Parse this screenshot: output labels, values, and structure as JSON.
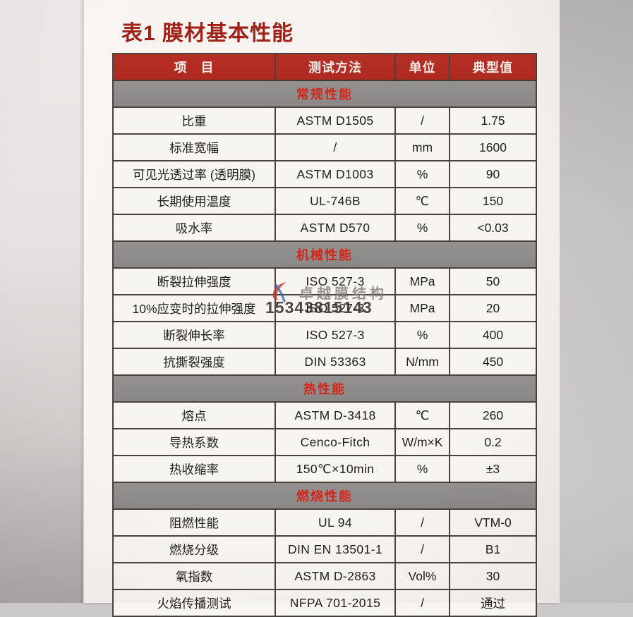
{
  "page": {
    "title": "表1 膜材基本性能"
  },
  "table": {
    "columns": [
      "项　目",
      "测试方法",
      "单位",
      "典型值"
    ],
    "sections": [
      {
        "name": "常规性能",
        "rows": [
          [
            "比重",
            "ASTM D1505",
            "/",
            "1.75"
          ],
          [
            "标准宽幅",
            "/",
            "mm",
            "1600"
          ],
          [
            "可见光透过率 (透明膜)",
            "ASTM D1003",
            "%",
            "90"
          ],
          [
            "长期使用温度",
            "UL-746B",
            "℃",
            "150"
          ],
          [
            "吸水率",
            "ASTM D570",
            "%",
            "<0.03"
          ]
        ]
      },
      {
        "name": "机械性能",
        "rows": [
          [
            "断裂拉伸强度",
            "ISO 527-3",
            "MPa",
            "50"
          ],
          [
            "10%应变时的拉伸强度",
            "ISO 527-3",
            "MPa",
            "20"
          ],
          [
            "断裂伸长率",
            "ISO 527-3",
            "%",
            "400"
          ],
          [
            "抗撕裂强度",
            "DIN 53363",
            "N/mm",
            "450"
          ]
        ]
      },
      {
        "name": "热性能",
        "rows": [
          [
            "熔点",
            "ASTM D-3418",
            "℃",
            "260"
          ],
          [
            "导热系数",
            "Cenco-Fitch",
            "W/m×K",
            "0.2"
          ],
          [
            "热收缩率",
            "150℃×10min",
            "%",
            "±3"
          ]
        ]
      },
      {
        "name": "燃烧性能",
        "rows": [
          [
            "阻燃性能",
            "UL 94",
            "/",
            "VTM-0"
          ],
          [
            "燃烧分级",
            "DIN EN 13501-1",
            "/",
            "B1"
          ],
          [
            "氧指数",
            "ASTM D-2863",
            "Vol%",
            "30"
          ],
          [
            "火焰传播测试",
            "NFPA 701-2015",
            "/",
            "通过"
          ]
        ]
      }
    ]
  },
  "watermark": {
    "brand": "卓越膜结构",
    "phone": "15343815143",
    "logo": "brand-swoosh-logo-icon"
  },
  "colors": {
    "title_red": "#a02117",
    "header_red": "#b02b20",
    "band_gray": "#8d8b88",
    "band_text_red": "#d3261b",
    "paper": "#f5f2ee",
    "cell_bg": "#f7f5f1",
    "border_dark": "#46433f"
  }
}
